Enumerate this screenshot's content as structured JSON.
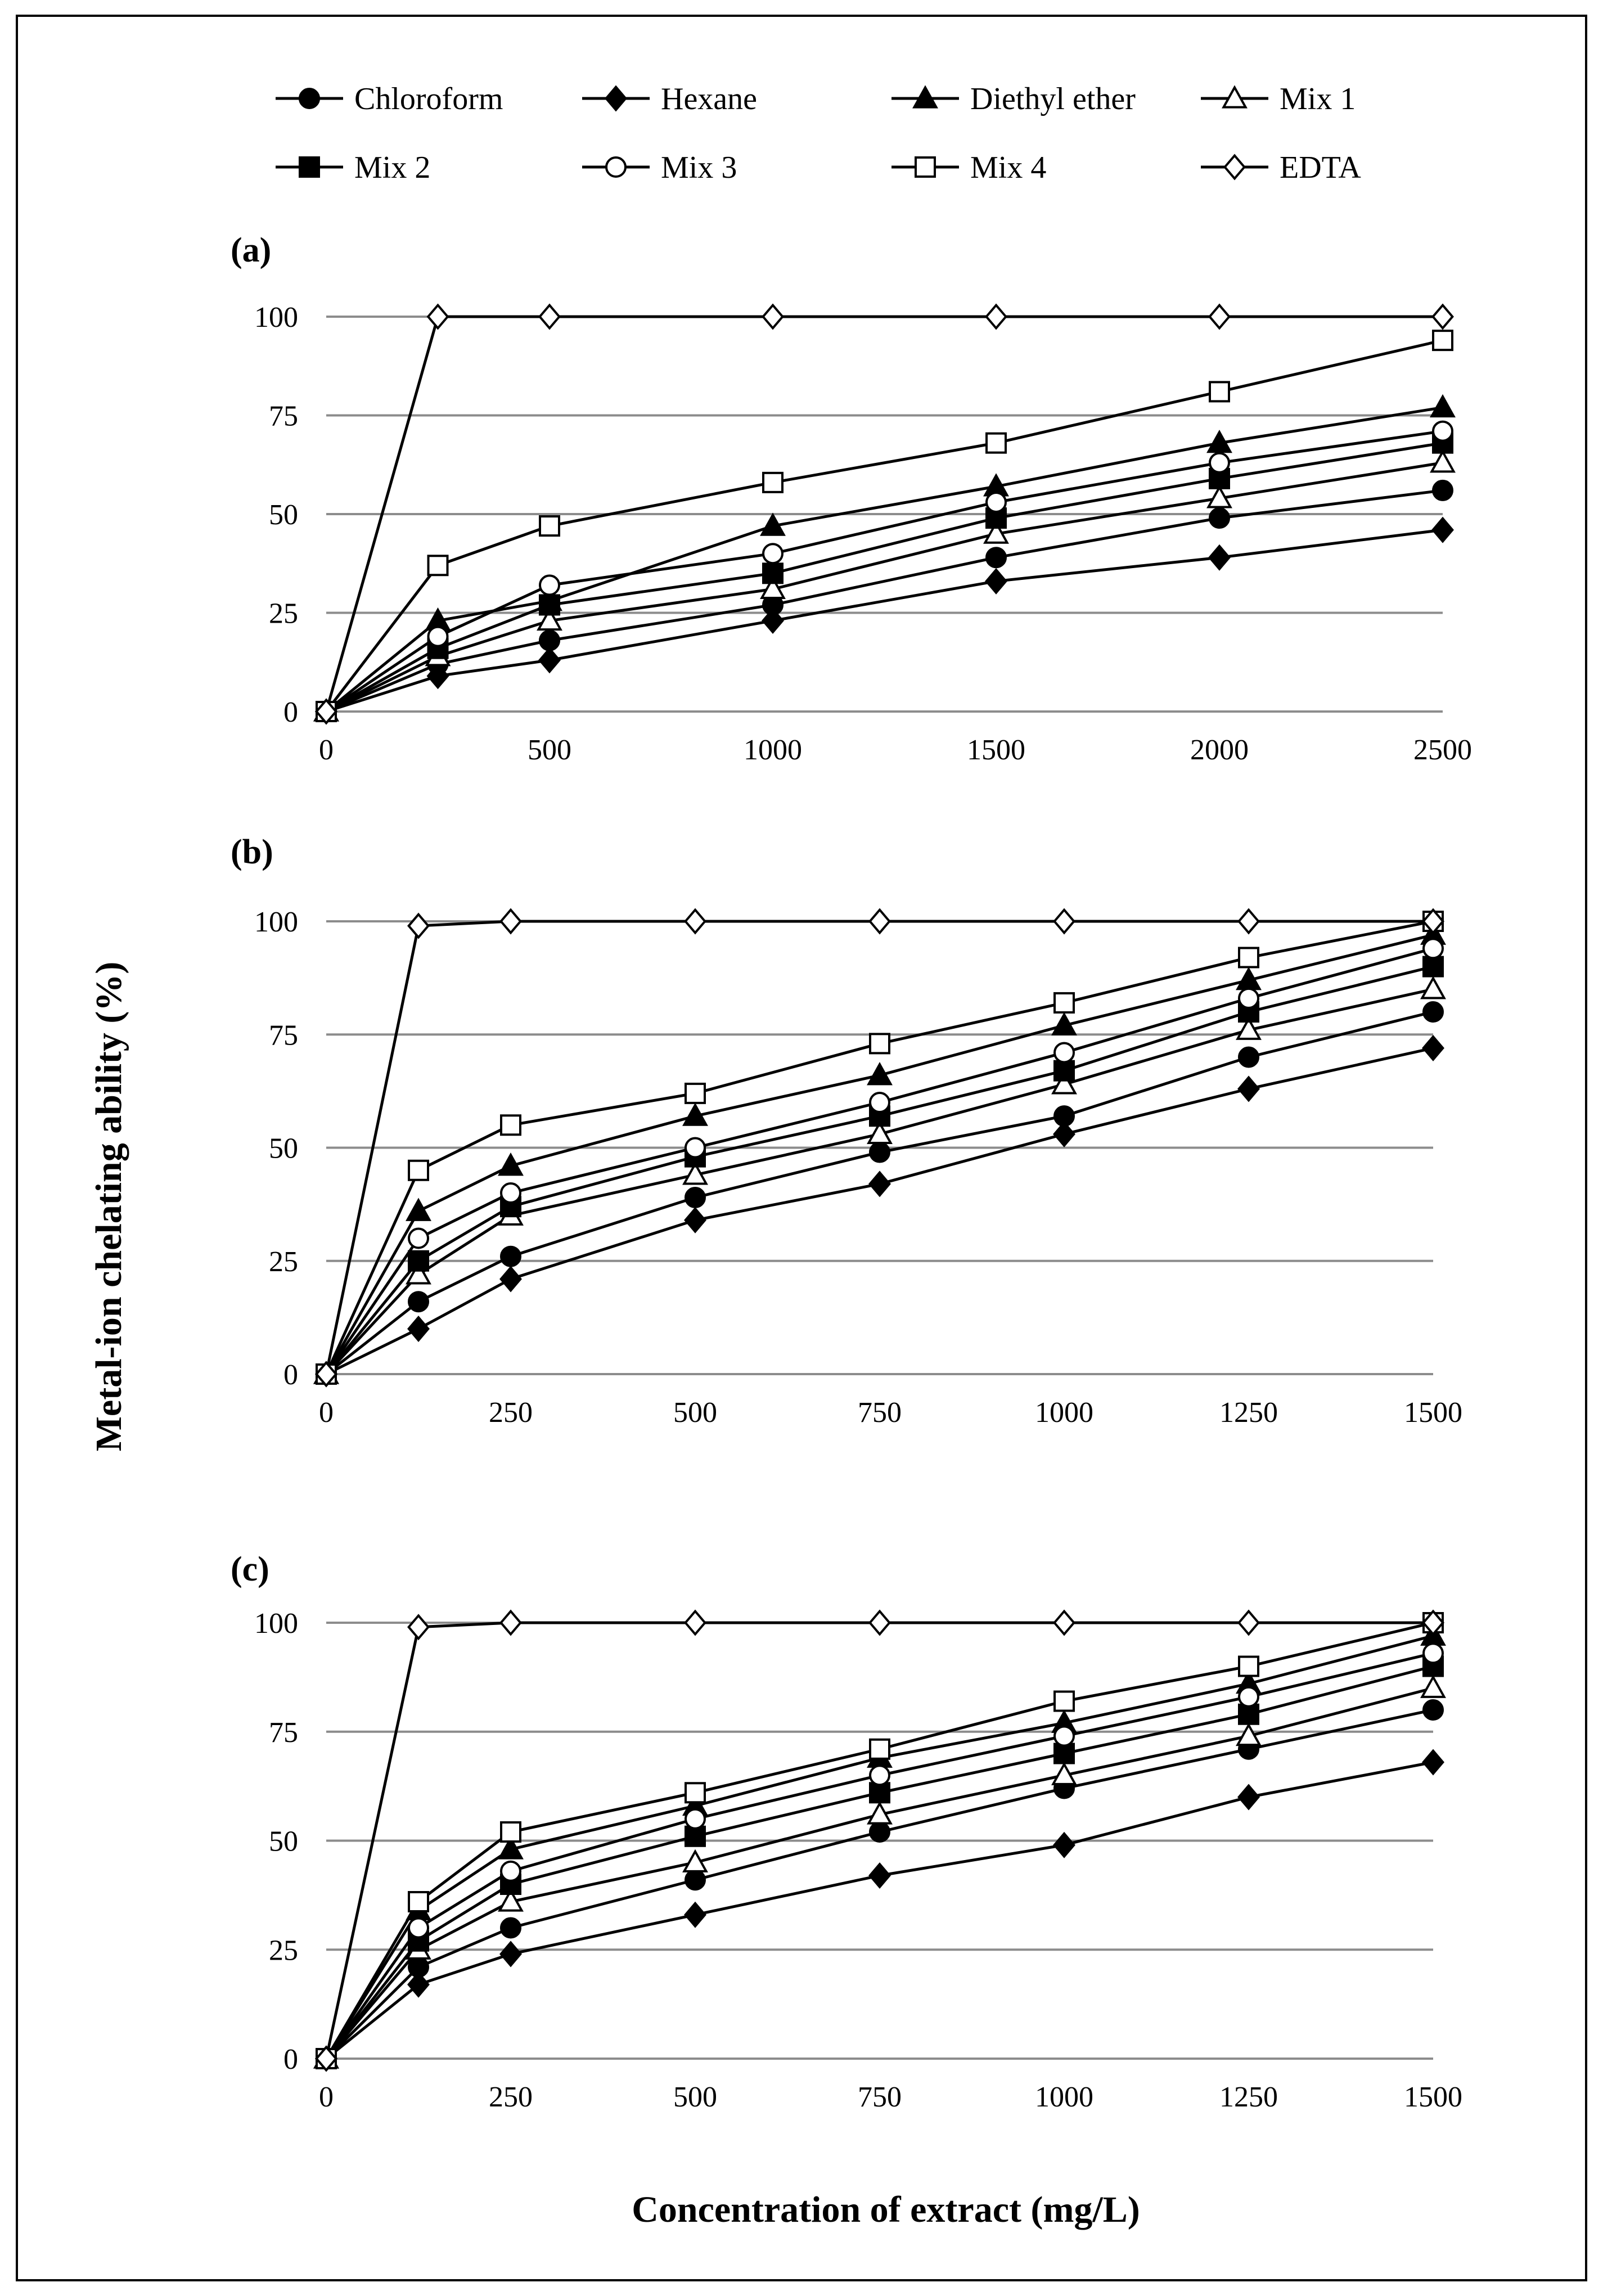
{
  "chart_data": {
    "type": "line",
    "shared_ylabel": "Metal-ion chelating ability (%)",
    "shared_xlabel": "Concentration of extract (mg/L)",
    "legend": [
      {
        "name": "Chloroform",
        "marker": "filled-circle"
      },
      {
        "name": "Hexane",
        "marker": "filled-diamond"
      },
      {
        "name": "Diethyl ether",
        "marker": "filled-triangle"
      },
      {
        "name": "Mix 1",
        "marker": "open-triangle"
      },
      {
        "name": "Mix 2",
        "marker": "filled-square"
      },
      {
        "name": "Mix 3",
        "marker": "open-circle"
      },
      {
        "name": "Mix 4",
        "marker": "open-square"
      },
      {
        "name": "EDTA",
        "marker": "open-diamond"
      }
    ],
    "panels": [
      {
        "label": "(a)",
        "x": [
          0,
          250,
          500,
          1000,
          1500,
          2000,
          2500
        ],
        "xticks": [
          0,
          500,
          1000,
          1500,
          2000,
          2500
        ],
        "xlim": [
          0,
          2500
        ],
        "ylim": [
          0,
          100
        ],
        "yticks": [
          0,
          25,
          50,
          75,
          100
        ],
        "series": [
          {
            "name": "Chloroform",
            "values": [
              0,
              12,
              18,
              27,
              39,
              49,
              56
            ]
          },
          {
            "name": "Hexane",
            "values": [
              0,
              9,
              13,
              23,
              33,
              39,
              46
            ]
          },
          {
            "name": "Diethyl ether",
            "values": [
              0,
              23,
              28,
              47,
              57,
              68,
              77
            ]
          },
          {
            "name": "Mix 1",
            "values": [
              0,
              14,
              23,
              31,
              45,
              54,
              63
            ]
          },
          {
            "name": "Mix 2",
            "values": [
              0,
              16,
              27,
              35,
              49,
              59,
              68
            ]
          },
          {
            "name": "Mix 3",
            "values": [
              0,
              19,
              32,
              40,
              53,
              63,
              71
            ]
          },
          {
            "name": "Mix 4",
            "values": [
              0,
              37,
              47,
              58,
              68,
              81,
              94
            ]
          },
          {
            "name": "EDTA",
            "values": [
              0,
              100,
              100,
              100,
              100,
              100,
              100
            ]
          }
        ]
      },
      {
        "label": "(b)",
        "x": [
          0,
          125,
          250,
          500,
          750,
          1000,
          1250,
          1500
        ],
        "xticks": [
          0,
          250,
          500,
          750,
          1000,
          1250,
          1500
        ],
        "xlim": [
          0,
          1500
        ],
        "ylim": [
          0,
          100
        ],
        "yticks": [
          0,
          25,
          50,
          75,
          100
        ],
        "series": [
          {
            "name": "Chloroform",
            "values": [
              0,
              16,
              26,
              39,
              49,
              57,
              70,
              80
            ]
          },
          {
            "name": "Hexane",
            "values": [
              0,
              10,
              21,
              34,
              42,
              53,
              63,
              72
            ]
          },
          {
            "name": "Diethyl ether",
            "values": [
              0,
              36,
              46,
              57,
              66,
              77,
              87,
              97
            ]
          },
          {
            "name": "Mix 1",
            "values": [
              0,
              22,
              35,
              44,
              53,
              64,
              76,
              85
            ]
          },
          {
            "name": "Mix 2",
            "values": [
              0,
              25,
              37,
              48,
              57,
              67,
              80,
              90
            ]
          },
          {
            "name": "Mix 3",
            "values": [
              0,
              30,
              40,
              50,
              60,
              71,
              83,
              94
            ]
          },
          {
            "name": "Mix 4",
            "values": [
              0,
              45,
              55,
              62,
              73,
              82,
              92,
              100
            ]
          },
          {
            "name": "EDTA",
            "values": [
              0,
              99,
              100,
              100,
              100,
              100,
              100,
              100
            ]
          }
        ]
      },
      {
        "label": "(c)",
        "x": [
          0,
          125,
          250,
          500,
          750,
          1000,
          1250,
          1500
        ],
        "xticks": [
          0,
          250,
          500,
          750,
          1000,
          1250,
          1500
        ],
        "xlim": [
          0,
          1500
        ],
        "ylim": [
          0,
          100
        ],
        "yticks": [
          0,
          25,
          50,
          75,
          100
        ],
        "series": [
          {
            "name": "Chloroform",
            "values": [
              0,
              21,
              30,
              41,
              52,
              62,
              71,
              80
            ]
          },
          {
            "name": "Hexane",
            "values": [
              0,
              17,
              24,
              33,
              42,
              49,
              60,
              68
            ]
          },
          {
            "name": "Diethyl ether",
            "values": [
              0,
              34,
              48,
              58,
              69,
              77,
              86,
              97
            ]
          },
          {
            "name": "Mix 1",
            "values": [
              0,
              25,
              36,
              45,
              56,
              65,
              74,
              85
            ]
          },
          {
            "name": "Mix 2",
            "values": [
              0,
              27,
              40,
              51,
              61,
              70,
              79,
              90
            ]
          },
          {
            "name": "Mix 3",
            "values": [
              0,
              30,
              43,
              55,
              65,
              74,
              83,
              93
            ]
          },
          {
            "name": "Mix 4",
            "values": [
              0,
              36,
              52,
              61,
              71,
              82,
              90,
              100
            ]
          },
          {
            "name": "EDTA",
            "values": [
              0,
              99,
              100,
              100,
              100,
              100,
              100,
              100
            ]
          }
        ]
      }
    ]
  }
}
